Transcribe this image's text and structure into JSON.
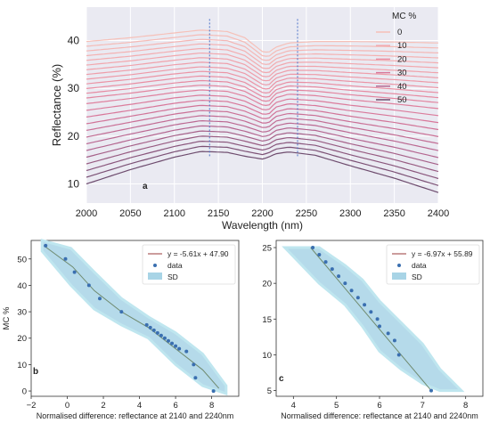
{
  "chart_data": [
    {
      "panel": "a",
      "type": "line",
      "xlabel": "Wavelength (nm)",
      "ylabel": "Reflectance (%)",
      "xlim": [
        2000,
        2400
      ],
      "ylim": [
        6,
        47
      ],
      "xticks": [
        2000,
        2050,
        2100,
        2150,
        2200,
        2250,
        2300,
        2350,
        2400
      ],
      "yticks": [
        10,
        20,
        30,
        40
      ],
      "grid": true,
      "legend": {
        "title": "MC %",
        "placement": "top-right",
        "entries": [
          "0",
          "10",
          "20",
          "30",
          "40",
          "50"
        ],
        "colors": [
          "#f6c0b8",
          "#f2a7ad",
          "#e98fa3",
          "#d8779a",
          "#b46690",
          "#6e4c6e"
        ]
      },
      "reference_lines_x": [
        2140,
        2240
      ],
      "profile_samples_x": [
        2000,
        2050,
        2100,
        2130,
        2160,
        2180,
        2200,
        2207,
        2215,
        2230,
        2260,
        2300,
        2350,
        2400
      ],
      "series": [
        {
          "start": 10.0,
          "values": [
            10.0,
            13.0,
            15.6,
            16.8,
            16.6,
            15.8,
            15.2,
            15.6,
            16.3,
            16.7,
            16.0,
            13.8,
            11.2,
            8.2
          ]
        },
        {
          "start": 27.5,
          "values": [
            27.5,
            28.5,
            29.7,
            30.2,
            29.9,
            28.9,
            27.0,
            26.8,
            28.5,
            29.3,
            29.0,
            28.2,
            27.4,
            26.5
          ]
        },
        {
          "start": 39.8,
          "values": [
            39.8,
            40.6,
            41.6,
            42.2,
            41.9,
            40.6,
            37.7,
            37.5,
            38.6,
            39.5,
            39.8,
            39.8,
            39.7,
            39.5
          ]
        }
      ]
    },
    {
      "panel": "b",
      "type": "scatter",
      "xlabel": "Normalised difference: reflectance at 2140 and 2240nm",
      "ylabel": "MC %",
      "xlim": [
        -2,
        9.5
      ],
      "ylim": [
        -2,
        57
      ],
      "xticks": [
        -2,
        0,
        2,
        4,
        6,
        8
      ],
      "yticks": [
        0,
        10,
        20,
        30,
        40,
        50
      ],
      "legend": {
        "placement": "top-right",
        "entries": [
          "y = -5.61x + 47.90",
          "data",
          "SD"
        ]
      },
      "fit": {
        "slope": -5.61,
        "intercept": 47.9
      },
      "fit_curve": {
        "x": [
          -1.3,
          0.3,
          1.5,
          3.0,
          4.5,
          6.0,
          7.5,
          8.4
        ],
        "y": [
          55,
          47,
          38,
          30,
          24,
          16,
          8,
          1
        ]
      },
      "sd_band": {
        "x": [
          -1.4,
          0.2,
          1.5,
          3.0,
          4.5,
          6.0,
          7.5,
          8.8
        ],
        "upper": [
          57,
          54,
          45,
          35,
          28,
          22,
          14,
          2
        ],
        "lower": [
          53,
          40,
          31,
          25,
          20,
          10,
          2,
          -1
        ]
      },
      "points": {
        "x": [
          -1.2,
          -0.1,
          0.4,
          1.2,
          1.8,
          3.0,
          4.4,
          4.6,
          4.8,
          5.0,
          5.2,
          5.4,
          5.6,
          5.8,
          6.0,
          6.2,
          6.6,
          7.0,
          7.1,
          8.1
        ],
        "y": [
          55,
          50,
          45,
          40,
          35,
          30,
          25,
          24,
          23,
          22,
          21,
          20,
          19,
          18,
          17,
          16,
          15,
          10,
          5,
          0
        ]
      }
    },
    {
      "panel": "c",
      "type": "scatter",
      "xlabel": "Normalised difference: reflectance at 2140 and 2240nm",
      "ylabel": "",
      "xlim": [
        3.6,
        8.4
      ],
      "ylim": [
        4.2,
        26
      ],
      "xticks": [
        4,
        5,
        6,
        7,
        8
      ],
      "yticks": [
        5,
        10,
        15,
        20,
        25
      ],
      "legend": {
        "placement": "top-right",
        "entries": [
          "y = -6.97x + 55.89",
          "data",
          "SD"
        ]
      },
      "fit": {
        "slope": -6.97,
        "intercept": 55.89
      },
      "fit_curve": {
        "x": [
          4.4,
          7.2
        ],
        "y": [
          25,
          5
        ]
      },
      "sd_band": {
        "x": [
          3.8,
          4.6,
          5.2,
          5.6,
          6.0,
          6.5,
          7.0,
          7.4,
          7.9
        ],
        "upper": [
          25,
          25,
          22.5,
          20.5,
          17.5,
          14.5,
          11.5,
          8,
          5
        ],
        "lower": [
          25,
          20,
          17,
          14,
          10.5,
          8,
          6,
          5,
          5
        ]
      },
      "points": {
        "x": [
          4.45,
          4.6,
          4.75,
          4.9,
          5.05,
          5.2,
          5.35,
          5.5,
          5.65,
          5.8,
          5.95,
          6.0,
          6.2,
          6.35,
          6.45,
          7.2
        ],
        "y": [
          25,
          24,
          23,
          22,
          21,
          20,
          19,
          18,
          17,
          16,
          15,
          14,
          13,
          12,
          10,
          5
        ]
      }
    }
  ],
  "colors": {
    "background": "#eaeaf2",
    "grid": "#ffffff",
    "reference_line": "#4a72c8",
    "fit_line": "#9a3a3a",
    "data_points": "#3a6fb0",
    "sd_band": "#a8d4e6"
  }
}
